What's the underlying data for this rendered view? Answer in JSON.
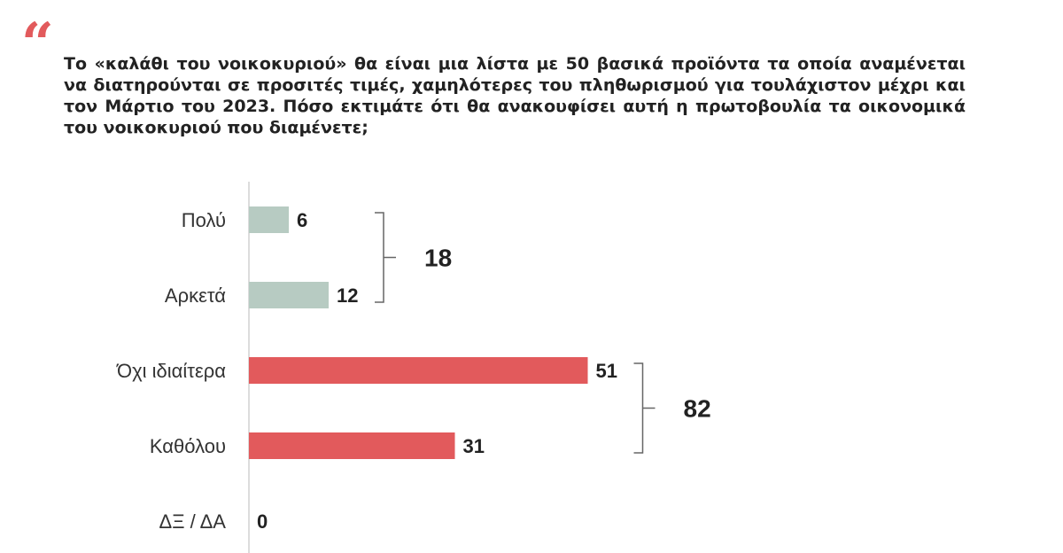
{
  "question": {
    "quote_mark": "“",
    "text": "Το «καλάθι του νοικοκυριού» θα είναι μια λίστα με 50 βασικά προϊόντα τα οποία αναμένεται να διατηρούνται σε προσιτές τιμές, χαμηλότερες του πληθωρισμού για τουλάχιστον μέχρι και τον Μάρτιο του 2023. Πόσο εκτιμάτε ότι θα ανακουφίσει αυτή η πρωτοβουλία τα οικονομικά του νοικοκυριού που διαμένετε;"
  },
  "chart_data": {
    "type": "bar",
    "orientation": "horizontal",
    "categories": [
      "Πολύ",
      "Αρκετά",
      "Όχι ιδιαίτερα",
      "Καθόλου",
      "ΔΞ / ΔΑ"
    ],
    "values": [
      6,
      12,
      51,
      31,
      0
    ],
    "bar_colors": [
      "#b7cbc2",
      "#b7cbc2",
      "#e25a5c",
      "#e25a5c",
      "#e25a5c"
    ],
    "group_totals": [
      {
        "categories": [
          "Πολύ",
          "Αρκετά"
        ],
        "value": 18
      },
      {
        "categories": [
          "Όχι ιδιαίτερα",
          "Καθόλου"
        ],
        "value": 82
      }
    ],
    "title": "",
    "xlabel": "",
    "ylabel": "",
    "xlim": [
      0,
      100
    ],
    "grid": false,
    "legend": "none"
  }
}
